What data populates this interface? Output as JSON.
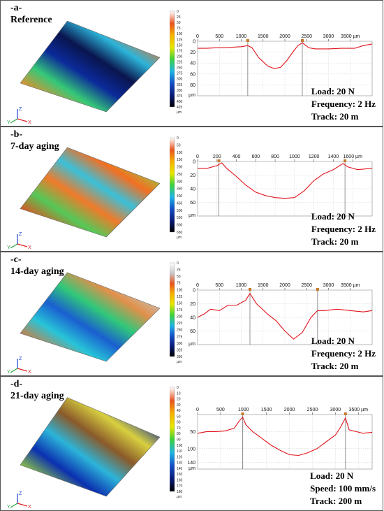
{
  "panels": [
    {
      "id": "a",
      "label": "-a-",
      "name": "Reference",
      "top": 0,
      "height": 181,
      "surface_colors": [
        "#e8541f",
        "#f08a2a",
        "#0b1f8c",
        "#1ea6d8",
        "#32d870",
        "#0a2a9e",
        "#ff7f24"
      ],
      "colorbar": {
        "ticks": [
          "0",
          "25",
          "50",
          "75",
          "100",
          "125",
          "150",
          "175",
          "200",
          "225",
          "250",
          "275",
          "300",
          "325",
          "350",
          "375",
          "400",
          "425"
        ],
        "unit": "µm",
        "gradient": [
          "#ffffff",
          "#e8541f",
          "#f5b000",
          "#e6e600",
          "#3cd23c",
          "#1eb4e6",
          "#1450c8",
          "#0a1a78",
          "#000000"
        ]
      },
      "params": [
        "Load: 20 N",
        "Frequency: 2 Hz",
        "Track: 20 m"
      ]
    },
    {
      "id": "b",
      "label": "-b-",
      "name": "7-day aging",
      "top": 181,
      "height": 179,
      "colorbar": {
        "ticks": [
          "0",
          "50",
          "100",
          "150",
          "200",
          "250",
          "300",
          "350",
          "400",
          "450",
          "500",
          "550",
          "600",
          "650"
        ],
        "unit": "µm",
        "gradient": [
          "#ffffff",
          "#e8541f",
          "#f5b000",
          "#e6e600",
          "#3cd23c",
          "#1eb4e6",
          "#1450c8",
          "#0a1a78",
          "#000000"
        ]
      },
      "params": [
        "Load: 20 N",
        "Frequency: 2 Hz",
        "Track: 20 m"
      ]
    },
    {
      "id": "c",
      "label": "-c-",
      "name": "14-day aging",
      "top": 360,
      "height": 178,
      "colorbar": {
        "ticks": [
          "0",
          "25",
          "50",
          "75",
          "100",
          "125",
          "150",
          "175",
          "200",
          "225",
          "250",
          "275",
          "300",
          "325",
          "350"
        ],
        "unit": "µm",
        "gradient": [
          "#ffffff",
          "#c8c8c8",
          "#e8541f",
          "#f5b000",
          "#e6e600",
          "#3cd23c",
          "#1eb4e6",
          "#1450c8",
          "#0a1a78",
          "#000000"
        ]
      },
      "params": [
        "Load: 20 N",
        "Frequency: 2 Hz",
        "Track: 20 m"
      ]
    },
    {
      "id": "d",
      "label": "-d-",
      "name": "21-day aging",
      "top": 538,
      "height": 193,
      "colorbar": {
        "ticks": [
          "0",
          "10",
          "20",
          "30",
          "40",
          "50",
          "60",
          "70",
          "80",
          "90",
          "100",
          "110",
          "120",
          "130",
          "140",
          "150",
          "160",
          "170",
          "180"
        ],
        "unit": "µm",
        "gradient": [
          "#ffffff",
          "#e8541f",
          "#f5b000",
          "#e6e600",
          "#3cd23c",
          "#1eb4e6",
          "#1450c8",
          "#0a1a78",
          "#000000"
        ]
      },
      "params": [
        "Load: 20 N",
        "Speed: 100 mm/s",
        "Track: 200 m"
      ]
    }
  ],
  "axis_icon": {
    "z": "Z",
    "y": "Y",
    "x": "X"
  },
  "chart_data": [
    {
      "type": "line",
      "panel": "a",
      "unit": "µm",
      "xlim": [
        0,
        4000
      ],
      "ylim": [
        0,
        100
      ],
      "y_inverted": true,
      "xticks": [
        0,
        500,
        1000,
        1500,
        2000,
        2500,
        3000,
        3500
      ],
      "xtick_labels": [
        "0",
        "500",
        "1000",
        "1500",
        "2000",
        "2500",
        "3000",
        "3500 µm"
      ],
      "yticks": [
        0,
        20,
        40,
        60,
        80
      ],
      "ytick_labels": [
        "0",
        "20",
        "40",
        "60",
        "80"
      ],
      "cursors": [
        1150,
        2400
      ],
      "x": [
        0,
        200,
        400,
        600,
        800,
        1000,
        1150,
        1250,
        1400,
        1600,
        1750,
        1900,
        2050,
        2200,
        2300,
        2400,
        2550,
        2700,
        3000,
        3300,
        3600,
        3800,
        4000
      ],
      "y": [
        13,
        13,
        12,
        12,
        11,
        10,
        8,
        12,
        30,
        45,
        50,
        48,
        35,
        18,
        8,
        3,
        12,
        14,
        14,
        13,
        13,
        8,
        5
      ]
    },
    {
      "type": "line",
      "panel": "b",
      "unit": "µm",
      "xlim": [
        0,
        1800
      ],
      "ylim": [
        0,
        80
      ],
      "y_inverted": true,
      "xticks": [
        0,
        200,
        400,
        600,
        800,
        1000,
        1200,
        1400,
        1600
      ],
      "xtick_labels": [
        "0",
        "200",
        "400",
        "600",
        "800",
        "1000",
        "1200",
        "1400",
        "1600 µm"
      ],
      "yticks": [
        0,
        20,
        40,
        60
      ],
      "ytick_labels": [
        "0",
        "20",
        "40",
        "60"
      ],
      "cursors": [
        220,
        1520
      ],
      "x": [
        0,
        100,
        200,
        250,
        300,
        400,
        500,
        600,
        700,
        800,
        900,
        1000,
        1100,
        1200,
        1300,
        1400,
        1500,
        1550,
        1650,
        1800
      ],
      "y": [
        10,
        10,
        6,
        2,
        10,
        22,
        35,
        45,
        50,
        53,
        54,
        53,
        43,
        28,
        18,
        12,
        3,
        8,
        12,
        10
      ]
    },
    {
      "type": "line",
      "panel": "c",
      "unit": "µm",
      "xlim": [
        0,
        4000
      ],
      "ylim": [
        0,
        80
      ],
      "y_inverted": true,
      "xticks": [
        0,
        500,
        1000,
        1500,
        2000,
        2500,
        3000,
        3500
      ],
      "xtick_labels": [
        "0",
        "500",
        "1000",
        "1500",
        "2000",
        "2500",
        "3000",
        "3500 µm"
      ],
      "yticks": [
        0,
        20,
        40,
        60
      ],
      "ytick_labels": [
        "0",
        "20",
        "40",
        "60"
      ],
      "cursors": [
        1200,
        2750
      ],
      "x": [
        0,
        150,
        300,
        500,
        700,
        900,
        1100,
        1200,
        1350,
        1600,
        1800,
        2000,
        2200,
        2400,
        2600,
        2750,
        2900,
        3200,
        3500,
        3800,
        4000
      ],
      "y": [
        40,
        35,
        28,
        30,
        22,
        22,
        15,
        5,
        20,
        35,
        45,
        60,
        72,
        62,
        40,
        30,
        30,
        28,
        30,
        32,
        30
      ]
    },
    {
      "type": "line",
      "panel": "d",
      "unit": "µm",
      "xlim": [
        0,
        3800
      ],
      "ylim": [
        0,
        160
      ],
      "y_inverted": true,
      "xticks": [
        0,
        500,
        1000,
        1500,
        2000,
        2500,
        3000,
        3500
      ],
      "xtick_labels": [
        "0",
        "500",
        "1000",
        "1500",
        "2000",
        "2500",
        "3000",
        "3500 µm"
      ],
      "yticks": [
        50,
        100,
        140
      ],
      "ytick_labels": [
        "50",
        "100",
        "140"
      ],
      "cursors": [
        980,
        3220
      ],
      "x": [
        0,
        200,
        400,
        600,
        800,
        900,
        980,
        1050,
        1200,
        1400,
        1600,
        1800,
        2000,
        2200,
        2400,
        2600,
        2800,
        3000,
        3100,
        3220,
        3300,
        3450,
        3600,
        3800
      ],
      "y": [
        55,
        50,
        50,
        48,
        40,
        20,
        8,
        30,
        50,
        70,
        90,
        105,
        118,
        120,
        112,
        100,
        80,
        60,
        40,
        10,
        45,
        50,
        55,
        52
      ]
    }
  ]
}
